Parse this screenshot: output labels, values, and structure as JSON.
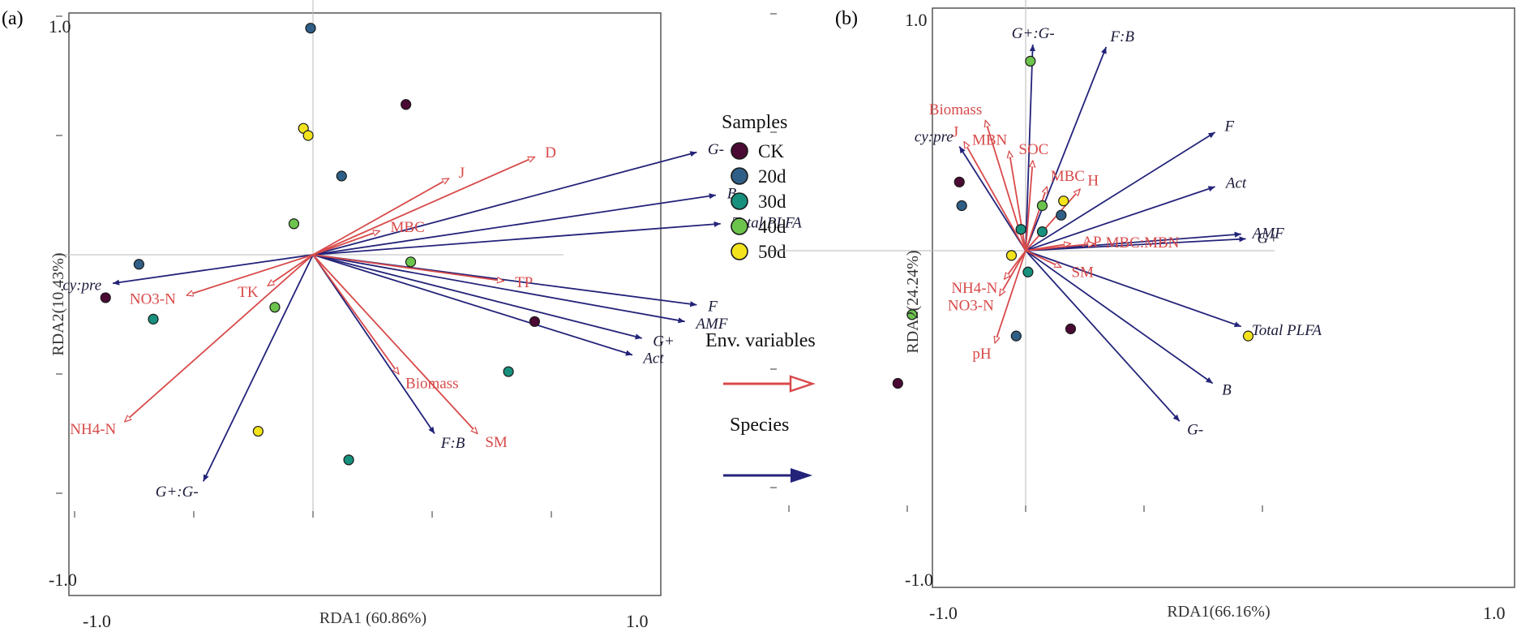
{
  "colors": {
    "env": "#d84a4a",
    "species": "#23237a",
    "CK": "#4a0a33",
    "20d": "#2f5f86",
    "30d": "#17907d",
    "40d": "#6cc44c",
    "50d": "#f2e31c"
  },
  "legend": {
    "title": "Samples",
    "groups": [
      "CK",
      "20d",
      "30d",
      "40d",
      "50d"
    ],
    "env_label": "Env. variables",
    "species_label": "Species"
  },
  "chart_data": [
    {
      "type": "scatter",
      "panel_label": "(a)",
      "xlabel": "RDA1 (60.86%)",
      "ylabel": "RDA2(10.43%)",
      "xlim": [
        -1.0,
        1.0
      ],
      "ylim": [
        -1.0,
        1.0
      ],
      "x_ticks": [
        "-1.0",
        "1.0"
      ],
      "y_ticks": [
        "1.0",
        "-1.0"
      ],
      "env_vectors": [
        {
          "label": "J",
          "x": 0.57,
          "y": 0.32
        },
        {
          "label": "D",
          "x": 0.93,
          "y": 0.41
        },
        {
          "label": "MBC",
          "x": 0.28,
          "y": 0.1
        },
        {
          "label": "TP",
          "x": 0.8,
          "y": -0.11
        },
        {
          "label": "TK",
          "x": -0.19,
          "y": -0.13
        },
        {
          "label": "NO3-N",
          "x": -0.53,
          "y": -0.17
        },
        {
          "label": "NH4-N",
          "x": -0.79,
          "y": -0.7
        },
        {
          "label": "Biomass",
          "x": 0.36,
          "y": -0.5
        },
        {
          "label": "SM",
          "x": 0.69,
          "y": -0.75
        }
      ],
      "species_vectors": [
        {
          "label": "G-",
          "x": 1.61,
          "y": 0.43
        },
        {
          "label": "B",
          "x": 1.69,
          "y": 0.25
        },
        {
          "label": "Total PLFA",
          "x": 1.71,
          "y": 0.13
        },
        {
          "label": "cy:pre",
          "x": -0.84,
          "y": -0.12
        },
        {
          "label": "F",
          "x": 1.61,
          "y": -0.21
        },
        {
          "label": "AMF",
          "x": 1.56,
          "y": -0.28
        },
        {
          "label": "G+",
          "x": 1.38,
          "y": -0.35
        },
        {
          "label": "Act",
          "x": 1.34,
          "y": -0.42
        },
        {
          "label": "F:B",
          "x": 0.51,
          "y": -0.75
        },
        {
          "label": "G+:G-",
          "x": -0.46,
          "y": -0.95
        }
      ],
      "samples": [
        {
          "group": "CK",
          "x": 0.39,
          "y": 0.63
        },
        {
          "group": "CK",
          "x": -0.87,
          "y": -0.18
        },
        {
          "group": "CK",
          "x": 0.93,
          "y": -0.28
        },
        {
          "group": "20d",
          "x": -0.01,
          "y": 0.95
        },
        {
          "group": "20d",
          "x": 0.12,
          "y": 0.33
        },
        {
          "group": "20d",
          "x": -0.73,
          "y": -0.04
        },
        {
          "group": "30d",
          "x": -0.67,
          "y": -0.27
        },
        {
          "group": "30d",
          "x": 0.82,
          "y": -0.49
        },
        {
          "group": "30d",
          "x": 0.15,
          "y": -0.86
        },
        {
          "group": "40d",
          "x": -0.08,
          "y": 0.13
        },
        {
          "group": "40d",
          "x": 0.41,
          "y": -0.03
        },
        {
          "group": "40d",
          "x": -0.16,
          "y": -0.22
        },
        {
          "group": "50d",
          "x": -0.04,
          "y": 0.53
        },
        {
          "group": "50d",
          "x": -0.02,
          "y": 0.5
        },
        {
          "group": "50d",
          "x": -0.23,
          "y": -0.74
        }
      ]
    },
    {
      "type": "scatter",
      "panel_label": "(b)",
      "xlabel": "RDA1(66.16%)",
      "ylabel": "RDA2(24.24%)",
      "xlim": [
        -1.0,
        1.0
      ],
      "ylim": [
        -1.0,
        1.0
      ],
      "x_ticks": [
        "-1.0",
        "1.0"
      ],
      "y_ticks": [
        "1.0",
        "-1.0"
      ],
      "env_vectors": [
        {
          "label": "J",
          "x": -0.26,
          "y": 0.46
        },
        {
          "label": "Biomass",
          "x": -0.17,
          "y": 0.55
        },
        {
          "label": "MBN",
          "x": -0.07,
          "y": 0.42
        },
        {
          "label": "SOC",
          "x": 0.03,
          "y": 0.38
        },
        {
          "label": "MBC",
          "x": 0.09,
          "y": 0.27
        },
        {
          "label": "H",
          "x": 0.23,
          "y": 0.26
        },
        {
          "label": "AP",
          "x": 0.19,
          "y": 0.03
        },
        {
          "label": "MBC:MBN",
          "x": 0.29,
          "y": 0.03
        },
        {
          "label": "SM",
          "x": 0.15,
          "y": -0.07
        },
        {
          "label": "NH4-N",
          "x": -0.09,
          "y": -0.12
        },
        {
          "label": "NO3-N",
          "x": -0.11,
          "y": -0.19
        },
        {
          "label": "pH",
          "x": -0.13,
          "y": -0.39
        }
      ],
      "species_vectors": [
        {
          "label": "G+:G-",
          "x": 0.03,
          "y": 0.87
        },
        {
          "label": "F:B",
          "x": 0.34,
          "y": 0.86
        },
        {
          "label": "cy:pre",
          "x": -0.28,
          "y": 0.44
        },
        {
          "label": "F",
          "x": 0.8,
          "y": 0.5
        },
        {
          "label": "Act",
          "x": 0.8,
          "y": 0.27
        },
        {
          "label": "AMF",
          "x": 0.91,
          "y": 0.07
        },
        {
          "label": "G+",
          "x": 0.93,
          "y": 0.05
        },
        {
          "label": "Total PLFA",
          "x": 0.91,
          "y": -0.32
        },
        {
          "label": "B",
          "x": 0.79,
          "y": -0.56
        },
        {
          "label": "G-",
          "x": 0.65,
          "y": -0.72
        }
      ],
      "samples": [
        {
          "group": "CK",
          "x": -0.28,
          "y": 0.29
        },
        {
          "group": "CK",
          "x": 0.19,
          "y": -0.33
        },
        {
          "group": "CK",
          "x": -0.54,
          "y": -0.56
        },
        {
          "group": "20d",
          "x": -0.27,
          "y": 0.19
        },
        {
          "group": "20d",
          "x": 0.15,
          "y": 0.15
        },
        {
          "group": "20d",
          "x": -0.04,
          "y": -0.36
        },
        {
          "group": "30d",
          "x": -0.02,
          "y": 0.09
        },
        {
          "group": "30d",
          "x": 0.07,
          "y": 0.08
        },
        {
          "group": "30d",
          "x": 0.01,
          "y": -0.09
        },
        {
          "group": "40d",
          "x": 0.02,
          "y": 0.8
        },
        {
          "group": "40d",
          "x": 0.07,
          "y": 0.19
        },
        {
          "group": "40d",
          "x": -0.48,
          "y": -0.27
        },
        {
          "group": "50d",
          "x": 0.16,
          "y": 0.21
        },
        {
          "group": "50d",
          "x": -0.06,
          "y": -0.02
        },
        {
          "group": "50d",
          "x": 0.94,
          "y": -0.36
        }
      ]
    }
  ]
}
